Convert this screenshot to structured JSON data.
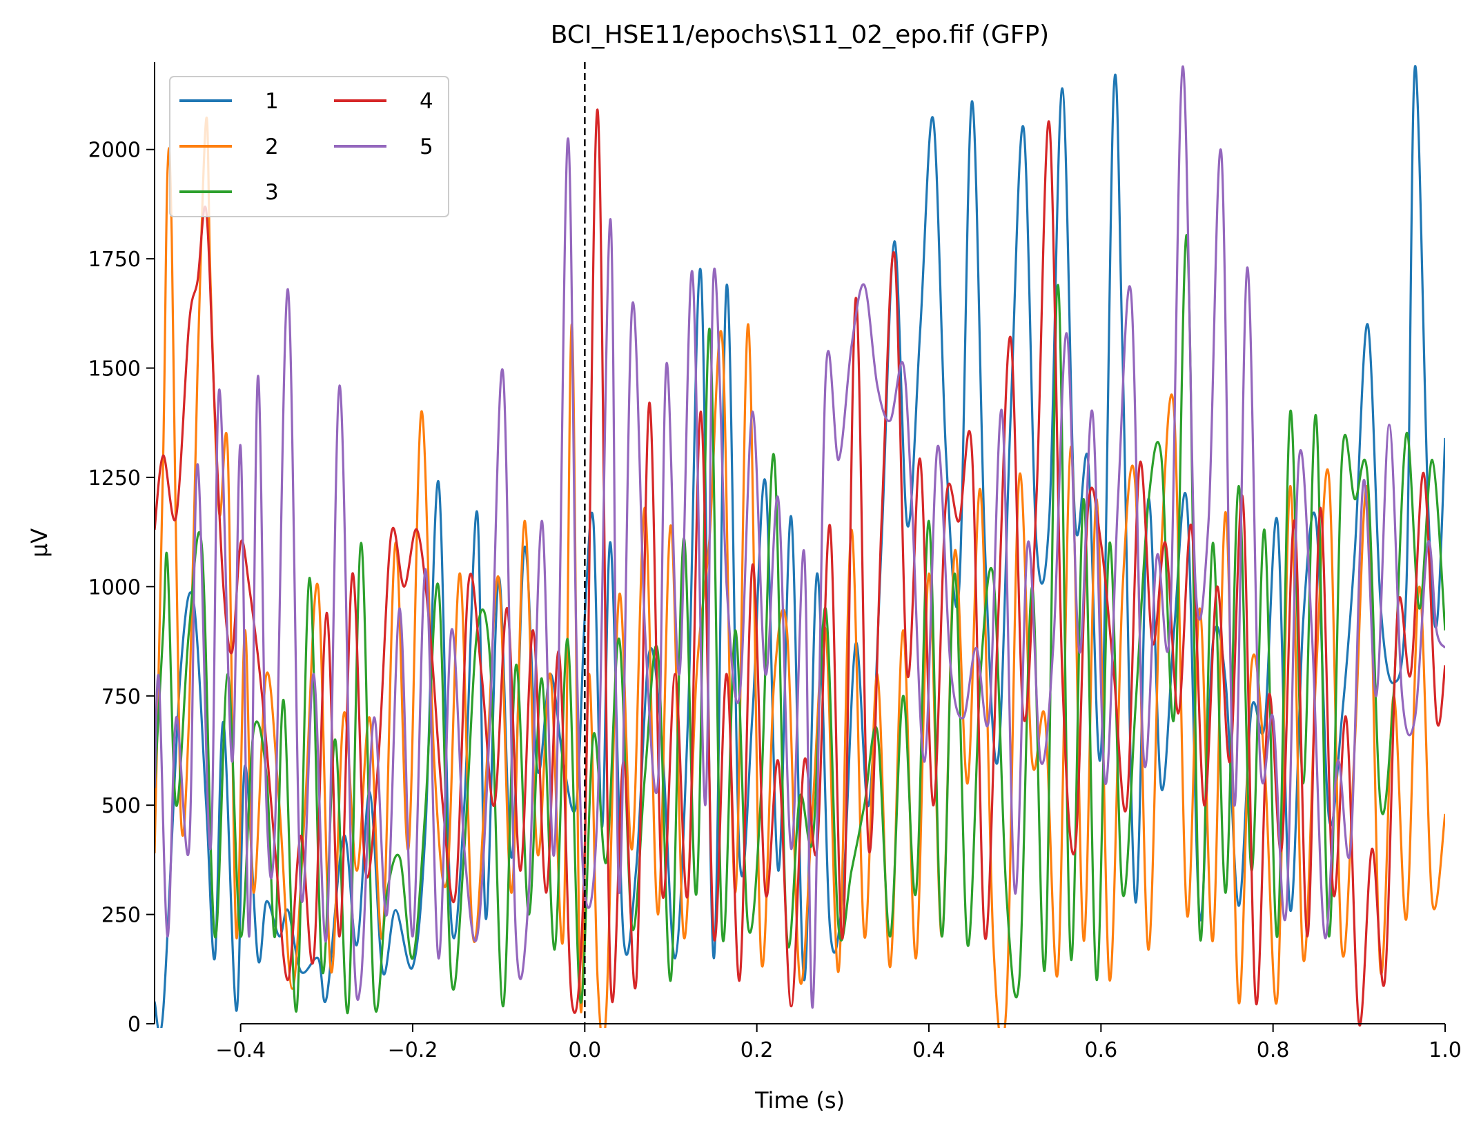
{
  "chart_data": {
    "type": "line",
    "title": "BCI_HSE11/epochs\\S11_02_epo.fif (GFP)",
    "xlabel": "Time (s)",
    "ylabel": "µV",
    "xlim": [
      -0.5,
      1.0
    ],
    "ylim": [
      0,
      2200
    ],
    "xticks": [
      -0.4,
      -0.2,
      0.0,
      0.2,
      0.4,
      0.6,
      0.8,
      1.0
    ],
    "xtick_labels": [
      "−0.4",
      "−0.2",
      "0.0",
      "0.2",
      "0.4",
      "0.6",
      "0.8",
      "1.0"
    ],
    "yticks": [
      0,
      250,
      500,
      750,
      1000,
      1250,
      1500,
      1750,
      2000
    ],
    "ytick_labels": [
      "0",
      "250",
      "500",
      "750",
      "1000",
      "1250",
      "1500",
      "1750",
      "2000"
    ],
    "vline_x": 0.0,
    "legend_placement": "upper-left",
    "grid": false,
    "series": [
      {
        "name": "1",
        "color": "#1f77b4",
        "x": [
          -0.5,
          -0.49,
          -0.47,
          -0.455,
          -0.44,
          -0.43,
          -0.42,
          -0.405,
          -0.395,
          -0.38,
          -0.37,
          -0.355,
          -0.345,
          -0.33,
          -0.31,
          -0.3,
          -0.28,
          -0.265,
          -0.25,
          -0.235,
          -0.22,
          -0.2,
          -0.185,
          -0.17,
          -0.155,
          -0.14,
          -0.125,
          -0.115,
          -0.1,
          -0.085,
          -0.07,
          -0.055,
          -0.04,
          -0.025,
          -0.01,
          0.0,
          0.01,
          0.02,
          0.03,
          0.045,
          0.06,
          0.075,
          0.09,
          0.105,
          0.12,
          0.135,
          0.15,
          0.165,
          0.18,
          0.195,
          0.21,
          0.225,
          0.24,
          0.255,
          0.27,
          0.285,
          0.3,
          0.315,
          0.33,
          0.345,
          0.36,
          0.375,
          0.39,
          0.405,
          0.42,
          0.435,
          0.45,
          0.465,
          0.48,
          0.495,
          0.51,
          0.525,
          0.54,
          0.555,
          0.57,
          0.585,
          0.6,
          0.615,
          0.625,
          0.64,
          0.655,
          0.67,
          0.685,
          0.7,
          0.715,
          0.73,
          0.745,
          0.76,
          0.775,
          0.79,
          0.805,
          0.82,
          0.835,
          0.85,
          0.865,
          0.88,
          0.895,
          0.91,
          0.925,
          0.94,
          0.955,
          0.965,
          0.98,
          0.99,
          1.0
        ],
        "y": [
          50,
          30,
          800,
          970,
          500,
          150,
          690,
          30,
          590,
          150,
          280,
          200,
          260,
          120,
          150,
          60,
          430,
          180,
          530,
          120,
          260,
          130,
          450,
          1240,
          230,
          500,
          1170,
          240,
          1020,
          380,
          1090,
          580,
          800,
          600,
          500,
          930,
          1150,
          450,
          1100,
          200,
          360,
          850,
          640,
          150,
          700,
          1720,
          150,
          1690,
          380,
          710,
          1240,
          350,
          1160,
          100,
          1030,
          220,
          300,
          870,
          500,
          1100,
          1790,
          1140,
          1590,
          2070,
          1300,
          990,
          2110,
          1100,
          600,
          1390,
          2050,
          1100,
          1160,
          2140,
          1150,
          1290,
          620,
          2140,
          1540,
          280,
          1200,
          540,
          900,
          1190,
          240,
          870,
          780,
          270,
          720,
          680,
          1150,
          260,
          920,
          1150,
          470,
          700,
          1080,
          1600,
          960,
          780,
          1000,
          2190,
          1200,
          910,
          1340
        ]
      },
      {
        "name": "2",
        "color": "#ff7f0e",
        "x": [
          -0.5,
          -0.49,
          -0.485,
          -0.48,
          -0.47,
          -0.46,
          -0.45,
          -0.44,
          -0.435,
          -0.425,
          -0.415,
          -0.405,
          -0.395,
          -0.385,
          -0.37,
          -0.355,
          -0.34,
          -0.325,
          -0.31,
          -0.295,
          -0.28,
          -0.265,
          -0.25,
          -0.235,
          -0.22,
          -0.205,
          -0.19,
          -0.175,
          -0.16,
          -0.145,
          -0.13,
          -0.115,
          -0.1,
          -0.085,
          -0.07,
          -0.055,
          -0.04,
          -0.025,
          -0.015,
          -0.005,
          0.005,
          0.015,
          0.025,
          0.04,
          0.055,
          0.07,
          0.085,
          0.1,
          0.115,
          0.13,
          0.145,
          0.16,
          0.175,
          0.19,
          0.205,
          0.22,
          0.235,
          0.25,
          0.265,
          0.28,
          0.295,
          0.31,
          0.325,
          0.34,
          0.355,
          0.37,
          0.385,
          0.4,
          0.415,
          0.43,
          0.445,
          0.46,
          0.475,
          0.49,
          0.505,
          0.52,
          0.535,
          0.55,
          0.565,
          0.58,
          0.595,
          0.61,
          0.625,
          0.64,
          0.655,
          0.67,
          0.685,
          0.7,
          0.715,
          0.73,
          0.745,
          0.76,
          0.775,
          0.79,
          0.805,
          0.82,
          0.835,
          0.85,
          0.865,
          0.88,
          0.895,
          0.91,
          0.925,
          0.94,
          0.955,
          0.97,
          0.985,
          1.0
        ],
        "y": [
          390,
          1300,
          1950,
          1800,
          500,
          700,
          1500,
          2070,
          1700,
          1170,
          1310,
          200,
          900,
          300,
          800,
          500,
          80,
          500,
          1000,
          120,
          710,
          350,
          700,
          200,
          1100,
          400,
          1400,
          600,
          330,
          1030,
          200,
          560,
          1020,
          300,
          1150,
          390,
          800,
          200,
          1600,
          40,
          800,
          100,
          30,
          980,
          400,
          1180,
          250,
          1140,
          200,
          800,
          1110,
          1560,
          300,
          1600,
          150,
          780,
          900,
          100,
          500,
          900,
          120,
          1130,
          200,
          800,
          130,
          900,
          150,
          1030,
          200,
          1080,
          550,
          1220,
          180,
          40,
          1250,
          600,
          700,
          120,
          1320,
          190,
          1200,
          100,
          990,
          1230,
          170,
          1080,
          1400,
          250,
          950,
          190,
          1170,
          50,
          820,
          600,
          60,
          1230,
          150,
          800,
          1250,
          170,
          640,
          1220,
          120,
          750,
          240,
          1000,
          280,
          480
        ]
      },
      {
        "name": "3",
        "color": "#2ca02c",
        "x": [
          -0.5,
          -0.49,
          -0.485,
          -0.475,
          -0.46,
          -0.445,
          -0.43,
          -0.415,
          -0.4,
          -0.385,
          -0.37,
          -0.36,
          -0.35,
          -0.335,
          -0.32,
          -0.305,
          -0.29,
          -0.275,
          -0.26,
          -0.245,
          -0.23,
          -0.215,
          -0.2,
          -0.185,
          -0.17,
          -0.155,
          -0.14,
          -0.125,
          -0.11,
          -0.095,
          -0.08,
          -0.065,
          -0.05,
          -0.035,
          -0.02,
          -0.005,
          0.01,
          0.025,
          0.04,
          0.055,
          0.07,
          0.085,
          0.1,
          0.115,
          0.13,
          0.145,
          0.16,
          0.175,
          0.19,
          0.205,
          0.22,
          0.235,
          0.25,
          0.265,
          0.28,
          0.295,
          0.31,
          0.325,
          0.34,
          0.355,
          0.37,
          0.385,
          0.4,
          0.415,
          0.43,
          0.445,
          0.46,
          0.475,
          0.49,
          0.505,
          0.52,
          0.535,
          0.55,
          0.565,
          0.58,
          0.595,
          0.61,
          0.625,
          0.64,
          0.655,
          0.67,
          0.685,
          0.7,
          0.715,
          0.73,
          0.745,
          0.76,
          0.775,
          0.79,
          0.805,
          0.82,
          0.835,
          0.85,
          0.865,
          0.88,
          0.895,
          0.91,
          0.925,
          0.94,
          0.955,
          0.97,
          0.985,
          1.0
        ],
        "y": [
          540,
          900,
          1060,
          500,
          900,
          1090,
          200,
          800,
          200,
          670,
          570,
          200,
          740,
          30,
          1020,
          120,
          650,
          30,
          1100,
          60,
          300,
          380,
          150,
          500,
          1000,
          100,
          400,
          900,
          830,
          40,
          820,
          250,
          790,
          170,
          880,
          50,
          660,
          370,
          880,
          220,
          570,
          850,
          100,
          1110,
          300,
          1590,
          200,
          900,
          220,
          530,
          1300,
          200,
          520,
          420,
          950,
          220,
          350,
          500,
          670,
          200,
          750,
          300,
          1150,
          200,
          1030,
          180,
          800,
          1020,
          300,
          100,
          1000,
          130,
          1690,
          150,
          1200,
          100,
          1100,
          300,
          720,
          1190,
          1300,
          700,
          1800,
          200,
          1100,
          300,
          1230,
          350,
          1130,
          200,
          1400,
          550,
          1390,
          200,
          1290,
          1200,
          1250,
          500,
          750,
          1350,
          950,
          1290,
          900
        ]
      },
      {
        "name": "4",
        "color": "#d62728",
        "x": [
          -0.5,
          -0.49,
          -0.475,
          -0.46,
          -0.45,
          -0.44,
          -0.43,
          -0.42,
          -0.41,
          -0.4,
          -0.39,
          -0.375,
          -0.36,
          -0.345,
          -0.33,
          -0.315,
          -0.3,
          -0.285,
          -0.27,
          -0.255,
          -0.24,
          -0.225,
          -0.21,
          -0.195,
          -0.18,
          -0.165,
          -0.15,
          -0.135,
          -0.12,
          -0.105,
          -0.09,
          -0.075,
          -0.06,
          -0.045,
          -0.03,
          -0.015,
          0.0,
          0.015,
          0.03,
          0.045,
          0.06,
          0.075,
          0.09,
          0.105,
          0.12,
          0.135,
          0.15,
          0.165,
          0.18,
          0.195,
          0.21,
          0.225,
          0.24,
          0.255,
          0.27,
          0.285,
          0.3,
          0.315,
          0.33,
          0.345,
          0.36,
          0.375,
          0.39,
          0.405,
          0.42,
          0.435,
          0.45,
          0.465,
          0.48,
          0.495,
          0.51,
          0.525,
          0.54,
          0.555,
          0.57,
          0.585,
          0.6,
          0.615,
          0.63,
          0.645,
          0.66,
          0.675,
          0.69,
          0.705,
          0.72,
          0.735,
          0.75,
          0.765,
          0.78,
          0.795,
          0.81,
          0.825,
          0.84,
          0.855,
          0.87,
          0.885,
          0.9,
          0.915,
          0.93,
          0.945,
          0.96,
          0.975,
          0.99,
          1.0
        ],
        "y": [
          1130,
          1300,
          1160,
          1600,
          1700,
          1860,
          1400,
          1000,
          850,
          1100,
          1000,
          750,
          400,
          100,
          430,
          150,
          940,
          200,
          1030,
          350,
          600,
          1120,
          1000,
          1130,
          900,
          500,
          300,
          1010,
          800,
          500,
          950,
          350,
          900,
          300,
          850,
          50,
          400,
          2090,
          100,
          600,
          100,
          1420,
          300,
          800,
          300,
          1400,
          200,
          800,
          100,
          1050,
          300,
          600,
          40,
          600,
          400,
          1140,
          200,
          1660,
          400,
          1150,
          1760,
          800,
          1290,
          500,
          1200,
          1150,
          1310,
          200,
          900,
          1570,
          700,
          1200,
          2060,
          800,
          400,
          1180,
          1100,
          800,
          500,
          1280,
          870,
          1100,
          710,
          1140,
          500,
          1000,
          600,
          1200,
          50,
          750,
          400,
          1150,
          200,
          1180,
          300,
          700,
          0,
          400,
          100,
          950,
          800,
          1260,
          700,
          820
        ]
      },
      {
        "name": "5",
        "color": "#9467bd",
        "x": [
          -0.5,
          -0.495,
          -0.485,
          -0.475,
          -0.46,
          -0.45,
          -0.435,
          -0.425,
          -0.41,
          -0.4,
          -0.39,
          -0.38,
          -0.37,
          -0.36,
          -0.345,
          -0.33,
          -0.315,
          -0.3,
          -0.285,
          -0.27,
          -0.26,
          -0.245,
          -0.23,
          -0.215,
          -0.2,
          -0.185,
          -0.17,
          -0.155,
          -0.14,
          -0.125,
          -0.11,
          -0.095,
          -0.08,
          -0.065,
          -0.05,
          -0.035,
          -0.02,
          -0.01,
          0.0,
          0.015,
          0.03,
          0.04,
          0.055,
          0.07,
          0.085,
          0.095,
          0.11,
          0.125,
          0.14,
          0.15,
          0.165,
          0.18,
          0.195,
          0.21,
          0.225,
          0.24,
          0.255,
          0.265,
          0.28,
          0.295,
          0.31,
          0.325,
          0.34,
          0.355,
          0.37,
          0.38,
          0.395,
          0.41,
          0.425,
          0.44,
          0.455,
          0.47,
          0.485,
          0.5,
          0.515,
          0.53,
          0.545,
          0.56,
          0.575,
          0.59,
          0.605,
          0.62,
          0.635,
          0.65,
          0.665,
          0.68,
          0.695,
          0.71,
          0.725,
          0.74,
          0.755,
          0.77,
          0.785,
          0.8,
          0.815,
          0.83,
          0.845,
          0.86,
          0.875,
          0.89,
          0.905,
          0.92,
          0.935,
          0.95,
          0.965,
          0.98,
          0.99,
          1.0
        ],
        "y": [
          540,
          790,
          200,
          700,
          400,
          1280,
          400,
          1450,
          600,
          1320,
          200,
          1480,
          500,
          450,
          1680,
          300,
          800,
          200,
          1460,
          250,
          100,
          700,
          250,
          950,
          200,
          1040,
          150,
          900,
          400,
          200,
          700,
          1490,
          200,
          300,
          1150,
          400,
          2020,
          900,
          300,
          500,
          1840,
          300,
          1640,
          900,
          550,
          1510,
          800,
          1720,
          500,
          1720,
          1000,
          750,
          1400,
          800,
          1200,
          400,
          1080,
          40,
          1480,
          1290,
          1550,
          1690,
          1460,
          1380,
          1510,
          1200,
          600,
          1320,
          820,
          700,
          860,
          700,
          1400,
          300,
          1100,
          600,
          880,
          1580,
          850,
          1400,
          550,
          1210,
          1670,
          600,
          1070,
          900,
          2190,
          1000,
          1150,
          1990,
          500,
          1730,
          600,
          700,
          250,
          1290,
          900,
          200,
          600,
          400,
          1240,
          750,
          1370,
          750,
          700,
          1100,
          900,
          860
        ]
      }
    ]
  }
}
